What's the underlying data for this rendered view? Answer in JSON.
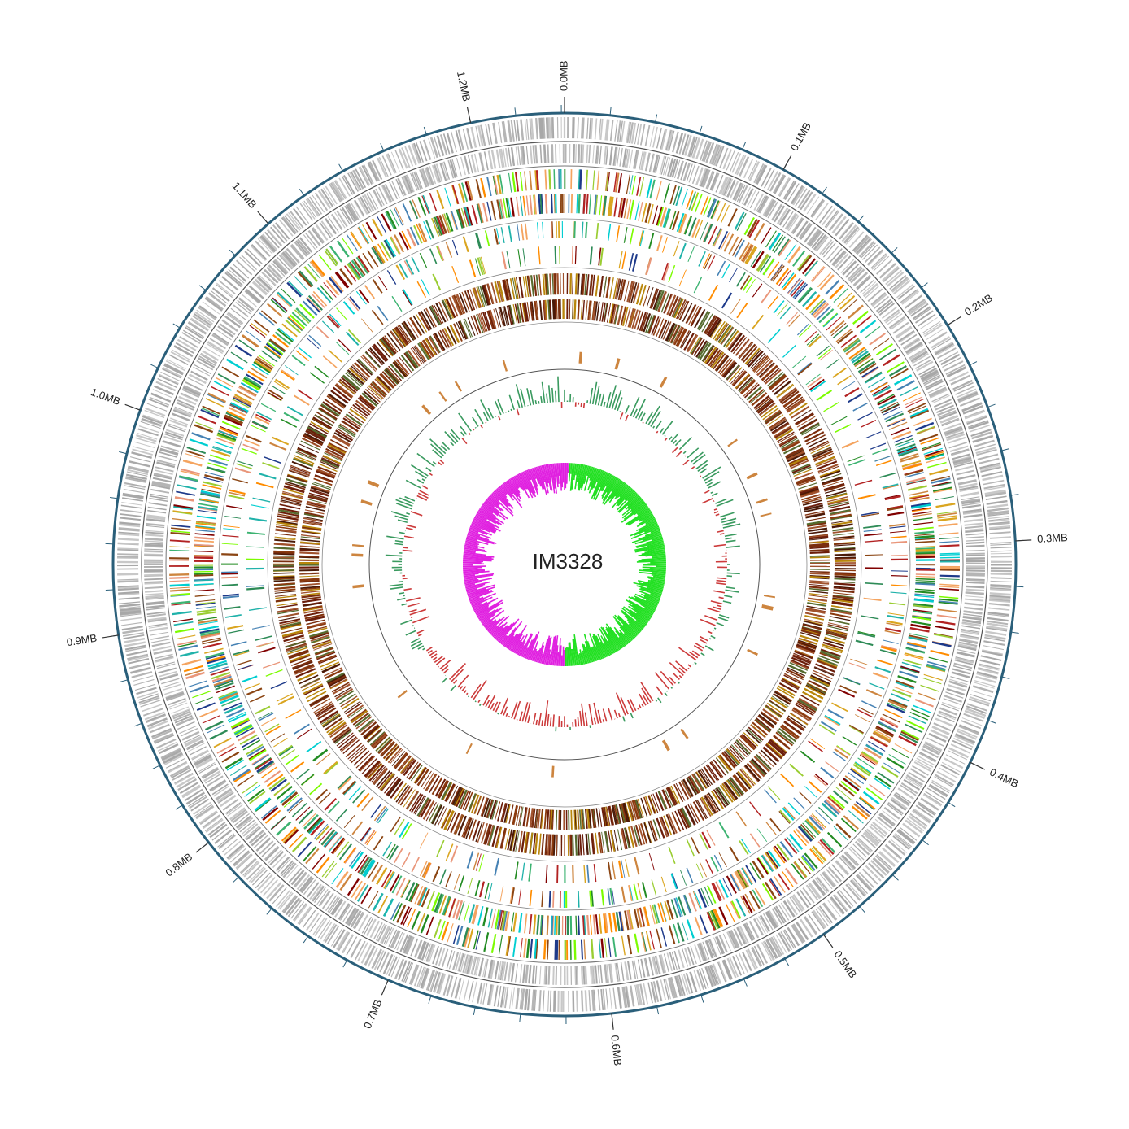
{
  "title": "IM3328",
  "scale_labels": [
    "0.0MB",
    "0.1MB",
    "0.2MB",
    "0.3MB",
    "0.4MB",
    "0.5MB",
    "0.6MB",
    "0.7MB",
    "0.8MB",
    "0.9MB",
    "1.0MB",
    "1.1MB",
    "1.2MB"
  ]
}
